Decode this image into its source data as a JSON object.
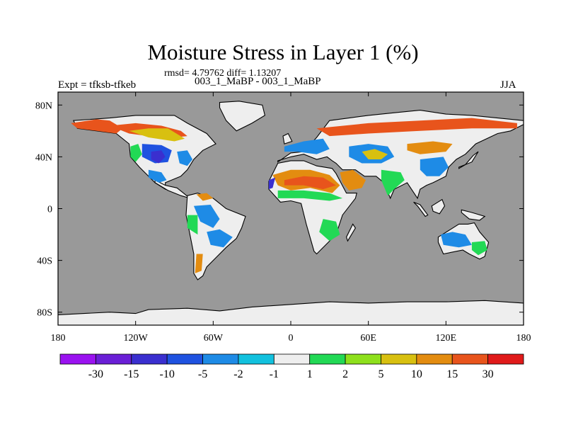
{
  "chart_data": {
    "type": "heatmap",
    "title": "Moisture Stress in Layer 1 (%)",
    "stats_line": "rmsd= 4.79762 diff= 1.13207",
    "left_string": "Expt = tfksb-tfkeb",
    "center_string": "003_1_MaBP - 003_1_MaBP",
    "right_string": "JJA",
    "x_range": [
      -180,
      180
    ],
    "y_range": [
      -90,
      90
    ],
    "x_ticks": [
      {
        "value": -180,
        "label": "180"
      },
      {
        "value": -120,
        "label": "120W"
      },
      {
        "value": -60,
        "label": "60W"
      },
      {
        "value": 0,
        "label": "0"
      },
      {
        "value": 60,
        "label": "60E"
      },
      {
        "value": 120,
        "label": "120E"
      },
      {
        "value": 180,
        "label": "180"
      }
    ],
    "y_ticks": [
      {
        "value": 80,
        "label": "80N"
      },
      {
        "value": 40,
        "label": "40N"
      },
      {
        "value": 0,
        "label": "0"
      },
      {
        "value": -40,
        "label": "40S"
      },
      {
        "value": -80,
        "label": "80S"
      }
    ],
    "ocean_color": "#999999",
    "colorbar": {
      "colors": [
        "#9a12f0",
        "#6a1fd6",
        "#3a2fcf",
        "#1f52e0",
        "#1e8be6",
        "#12c1de",
        "#eeeeee",
        "#22d955",
        "#8ee01c",
        "#d8c010",
        "#e38c10",
        "#e8541c",
        "#e01a1a"
      ],
      "labels": [
        "-30",
        "-15",
        "-10",
        "-5",
        "-2",
        "-1",
        "1",
        "2",
        "5",
        "10",
        "15",
        "30"
      ]
    },
    "regions": [
      {
        "name": "antarctica",
        "color": "#eeeeee",
        "lon": [
          -180,
          -140,
          -120,
          -110,
          -80,
          -55,
          -30,
          0,
          30,
          60,
          90,
          120,
          150,
          180,
          180,
          -180
        ],
        "lat": [
          -82,
          -80,
          -81,
          -78,
          -77,
          -79,
          -76,
          -74,
          -72,
          -73,
          -72,
          -72,
          -71,
          -73,
          -90,
          -90
        ]
      },
      {
        "name": "greenland",
        "color": "#eeeeee",
        "lon": [
          -55,
          -40,
          -22,
          -20,
          -30,
          -42,
          -50,
          -55
        ],
        "lat": [
          82,
          83,
          80,
          72,
          66,
          60,
          68,
          78
        ]
      },
      {
        "name": "north-america",
        "color": "#eeeeee",
        "lon": [
          -168,
          -140,
          -120,
          -90,
          -80,
          -65,
          -58,
          -68,
          -75,
          -80,
          -85,
          -97,
          -97,
          -105,
          -117,
          -124,
          -125,
          -135,
          -150,
          -165
        ],
        "lat": [
          68,
          70,
          72,
          72,
          66,
          58,
          50,
          45,
          38,
          30,
          25,
          20,
          15,
          20,
          32,
          40,
          50,
          58,
          60,
          62
        ]
      },
      {
        "name": "central-america",
        "color": "#eeeeee",
        "lon": [
          -105,
          -97,
          -88,
          -83,
          -78,
          -85,
          -95,
          -105
        ],
        "lat": [
          22,
          18,
          16,
          12,
          8,
          10,
          14,
          20
        ]
      },
      {
        "name": "south-america",
        "color": "#eeeeee",
        "lon": [
          -80,
          -72,
          -60,
          -50,
          -35,
          -38,
          -42,
          -50,
          -58,
          -65,
          -68,
          -72,
          -75,
          -75,
          -81
        ],
        "lat": [
          10,
          12,
          8,
          0,
          -6,
          -15,
          -23,
          -30,
          -38,
          -45,
          -52,
          -55,
          -50,
          -35,
          -5
        ]
      },
      {
        "name": "eurasia",
        "color": "#eeeeee",
        "lon": [
          -10,
          0,
          10,
          20,
          30,
          45,
          60,
          80,
          100,
          120,
          140,
          160,
          180,
          180,
          170,
          160,
          143,
          135,
          128,
          122,
          120,
          110,
          105,
          100,
          98,
          90,
          80,
          77,
          72,
          66,
          57,
          50,
          40,
          35,
          32,
          28,
          20,
          10,
          0,
          -10,
          -10
        ],
        "lat": [
          36,
          43,
          44,
          55,
          68,
          70,
          72,
          74,
          76,
          73,
          72,
          70,
          68,
          65,
          60,
          58,
          50,
          42,
          38,
          32,
          25,
          20,
          18,
          15,
          8,
          20,
          15,
          8,
          20,
          25,
          25,
          30,
          30,
          35,
          37,
          40,
          38,
          42,
          40,
          37,
          36
        ]
      },
      {
        "name": "africa",
        "color": "#eeeeee",
        "lon": [
          -17,
          -10,
          0,
          10,
          20,
          32,
          35,
          43,
          51,
          50,
          40,
          35,
          20,
          18,
          12,
          8,
          0,
          -8,
          -17
        ],
        "lat": [
          21,
          35,
          37,
          37,
          33,
          31,
          27,
          12,
          12,
          8,
          -5,
          -20,
          -35,
          -33,
          -12,
          4,
          6,
          5,
          15
        ]
      },
      {
        "name": "madagascar",
        "color": "#eeeeee",
        "lon": [
          44,
          50,
          48,
          43
        ],
        "lat": [
          -25,
          -15,
          -12,
          -22
        ]
      },
      {
        "name": "australia",
        "color": "#eeeeee",
        "lon": [
          114,
          122,
          130,
          137,
          142,
          146,
          153,
          150,
          146,
          138,
          133,
          118,
          114
        ],
        "lat": [
          -22,
          -17,
          -12,
          -12,
          -11,
          -18,
          -26,
          -37,
          -39,
          -35,
          -32,
          -35,
          -26
        ]
      },
      {
        "name": "new-guinea",
        "color": "#eeeeee",
        "lon": [
          132,
          140,
          150,
          146,
          138,
          132
        ],
        "lat": [
          -1,
          -3,
          -6,
          -9,
          -8,
          -3
        ]
      },
      {
        "name": "borneo",
        "color": "#eeeeee",
        "lon": [
          109,
          117,
          119,
          115,
          110
        ],
        "lat": [
          2,
          7,
          2,
          -4,
          -2
        ]
      },
      {
        "name": "sumatra",
        "color": "#eeeeee",
        "lon": [
          95,
          100,
          106,
          104,
          98
        ],
        "lat": [
          5,
          3,
          -5,
          -6,
          2
        ]
      },
      {
        "name": "japan",
        "color": "#eeeeee",
        "lon": [
          130,
          140,
          145,
          141,
          135,
          130
        ],
        "lat": [
          32,
          36,
          44,
          41,
          34,
          31
        ]
      },
      {
        "name": "uk",
        "color": "#eeeeee",
        "lon": [
          -5,
          1,
          -2,
          -6
        ],
        "lat": [
          50,
          52,
          58,
          56
        ]
      },
      {
        "name": "alaska-red",
        "color": "#e8541c",
        "lon": [
          -170,
          -150,
          -140,
          -130,
          -135,
          -150,
          -165
        ],
        "lat": [
          66,
          69,
          68,
          62,
          58,
          60,
          62
        ]
      },
      {
        "name": "canada-red",
        "color": "#e8541c",
        "lon": [
          -140,
          -120,
          -100,
          -85,
          -80,
          -90,
          -110,
          -125
        ],
        "lat": [
          64,
          66,
          64,
          60,
          56,
          55,
          56,
          58
        ]
      },
      {
        "name": "canada-yellow",
        "color": "#d8c010",
        "lon": [
          -125,
          -110,
          -95,
          -82,
          -90,
          -110
        ],
        "lat": [
          60,
          62,
          62,
          54,
          52,
          55
        ]
      },
      {
        "name": "us-blue",
        "color": "#1f52e0",
        "lon": [
          -115,
          -100,
          -92,
          -95,
          -105,
          -115
        ],
        "lat": [
          50,
          49,
          45,
          36,
          35,
          40
        ]
      },
      {
        "name": "us-dark",
        "color": "#3a2fcf",
        "lon": [
          -108,
          -100,
          -97,
          -102,
          -108
        ],
        "lat": [
          44,
          45,
          40,
          35,
          38
        ]
      },
      {
        "name": "us-east-blue",
        "color": "#1e8be6",
        "lon": [
          -88,
          -80,
          -76,
          -80,
          -86
        ],
        "lat": [
          44,
          45,
          38,
          33,
          35
        ]
      },
      {
        "name": "mexico-blue",
        "color": "#1e8be6",
        "lon": [
          -110,
          -100,
          -96,
          -102,
          -110
        ],
        "lat": [
          30,
          28,
          22,
          20,
          24
        ]
      },
      {
        "name": "us-west-green",
        "color": "#22d955",
        "lon": [
          -124,
          -118,
          -115,
          -120,
          -124
        ],
        "lat": [
          48,
          50,
          42,
          36,
          40
        ]
      },
      {
        "name": "sa-blue",
        "color": "#1e8be6",
        "lon": [
          -75,
          -62,
          -55,
          -60,
          -70
        ],
        "lat": [
          2,
          3,
          -8,
          -15,
          -10
        ]
      },
      {
        "name": "sa-blue-south",
        "color": "#1e8be6",
        "lon": [
          -65,
          -55,
          -45,
          -52,
          -62
        ],
        "lat": [
          -18,
          -16,
          -22,
          -30,
          -28
        ]
      },
      {
        "name": "sa-north-orange",
        "color": "#e38c10",
        "lon": [
          -73,
          -65,
          -60,
          -68
        ],
        "lat": [
          11,
          12,
          8,
          6
        ]
      },
      {
        "name": "sa-orange",
        "color": "#e38c10",
        "lon": [
          -73,
          -68,
          -69,
          -74
        ],
        "lat": [
          -35,
          -35,
          -48,
          -50
        ]
      },
      {
        "name": "sa-green",
        "color": "#22d955",
        "lon": [
          -80,
          -72,
          -72,
          -80
        ],
        "lat": [
          -5,
          -5,
          -20,
          -15
        ]
      },
      {
        "name": "sahara-orange",
        "color": "#e38c10",
        "lon": [
          -14,
          0,
          15,
          30,
          38,
          32,
          15,
          0,
          -10
        ],
        "lat": [
          26,
          30,
          30,
          26,
          18,
          12,
          16,
          14,
          18
        ]
      },
      {
        "name": "sahara-red",
        "color": "#e8541c",
        "lon": [
          -5,
          10,
          25,
          35,
          25,
          10,
          -5
        ],
        "lat": [
          22,
          25,
          24,
          18,
          15,
          18,
          18
        ]
      },
      {
        "name": "arabia-orange",
        "color": "#e38c10",
        "lon": [
          38,
          48,
          58,
          55,
          45,
          40
        ],
        "lat": [
          28,
          30,
          22,
          16,
          14,
          20
        ]
      },
      {
        "name": "sahel-green",
        "color": "#22d955",
        "lon": [
          -10,
          10,
          30,
          40,
          30,
          10,
          -10
        ],
        "lat": [
          14,
          14,
          12,
          8,
          6,
          8,
          8
        ]
      },
      {
        "name": "se-africa-green",
        "color": "#22d955",
        "lon": [
          25,
          35,
          38,
          30,
          22
        ],
        "lat": [
          -8,
          -10,
          -20,
          -25,
          -18
        ]
      },
      {
        "name": "west-africa-blue",
        "color": "#3a2fcf",
        "lon": [
          -17,
          -12,
          -14,
          -17
        ],
        "lat": [
          22,
          24,
          16,
          15
        ]
      },
      {
        "name": "siberia-red",
        "color": "#e8541c",
        "lon": [
          20,
          60,
          100,
          140,
          175,
          175,
          140,
          100,
          60,
          30
        ],
        "lat": [
          62,
          66,
          68,
          70,
          66,
          62,
          62,
          60,
          58,
          56
        ]
      },
      {
        "name": "europe-blue",
        "color": "#1e8be6",
        "lon": [
          -5,
          10,
          25,
          30,
          20,
          5,
          -5
        ],
        "lat": [
          48,
          52,
          54,
          46,
          42,
          44,
          44
        ]
      },
      {
        "name": "central-asia-blue",
        "color": "#1e8be6",
        "lon": [
          45,
          60,
          75,
          80,
          70,
          55,
          45
        ],
        "lat": [
          48,
          50,
          48,
          40,
          35,
          35,
          40
        ]
      },
      {
        "name": "central-asia-yellow",
        "color": "#d8c010",
        "lon": [
          55,
          65,
          75,
          70,
          60
        ],
        "lat": [
          44,
          46,
          42,
          38,
          38
        ]
      },
      {
        "name": "mongolia-orange",
        "color": "#e38c10",
        "lon": [
          90,
          110,
          125,
          120,
          100,
          90
        ],
        "lat": [
          50,
          52,
          50,
          44,
          42,
          45
        ]
      },
      {
        "name": "china-blue",
        "color": "#1e8be6",
        "lon": [
          100,
          118,
          122,
          115,
          105,
          100
        ],
        "lat": [
          38,
          40,
          32,
          25,
          25,
          30
        ]
      },
      {
        "name": "india-green",
        "color": "#22d955",
        "lon": [
          70,
          85,
          88,
          80,
          75,
          70
        ],
        "lat": [
          30,
          28,
          22,
          15,
          10,
          22
        ]
      },
      {
        "name": "australia-blue",
        "color": "#1e8be6",
        "lon": [
          116,
          125,
          135,
          140,
          130,
          118
        ],
        "lat": [
          -20,
          -18,
          -20,
          -28,
          -30,
          -28
        ]
      },
      {
        "name": "australia-green",
        "color": "#22d955",
        "lon": [
          140,
          150,
          152,
          145,
          140
        ],
        "lat": [
          -26,
          -25,
          -32,
          -36,
          -32
        ]
      }
    ]
  }
}
